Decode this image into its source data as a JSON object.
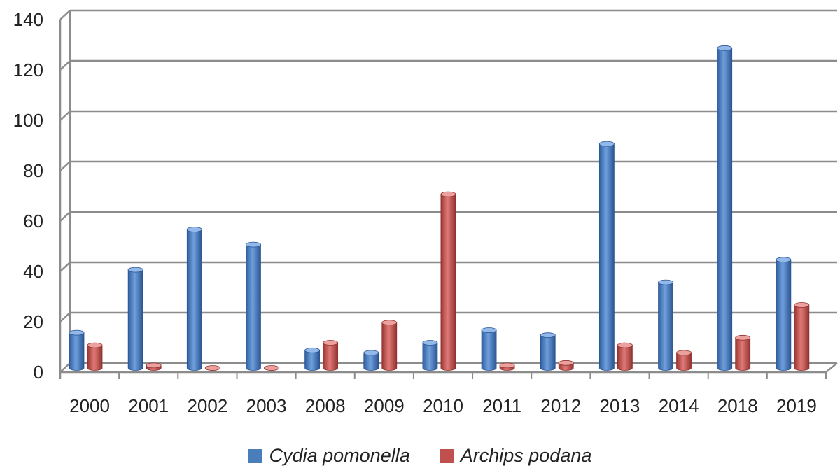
{
  "chart_data": {
    "type": "bar",
    "categories": [
      "2000",
      "2001",
      "2002",
      "2003",
      "2008",
      "2009",
      "2010",
      "2011",
      "2012",
      "2013",
      "2014",
      "2018",
      "2019"
    ],
    "series": [
      {
        "name": "Cydia pomonella",
        "color": "#4a7ebb",
        "values": [
          14,
          39,
          55,
          49,
          7,
          6,
          10,
          15,
          13,
          89,
          34,
          127,
          43
        ]
      },
      {
        "name": "Archips podana",
        "color": "#c0504d",
        "values": [
          9,
          1,
          0,
          0,
          10,
          18,
          69,
          1,
          2,
          9,
          6,
          12,
          25
        ]
      }
    ],
    "yticks": [
      "0",
      "20",
      "40",
      "60",
      "80",
      "100",
      "120",
      "140"
    ],
    "ylim": [
      0,
      140
    ],
    "xlabel": "",
    "ylabel": "",
    "grid": true,
    "legend": "bottom",
    "style": "3d-cylinder"
  }
}
